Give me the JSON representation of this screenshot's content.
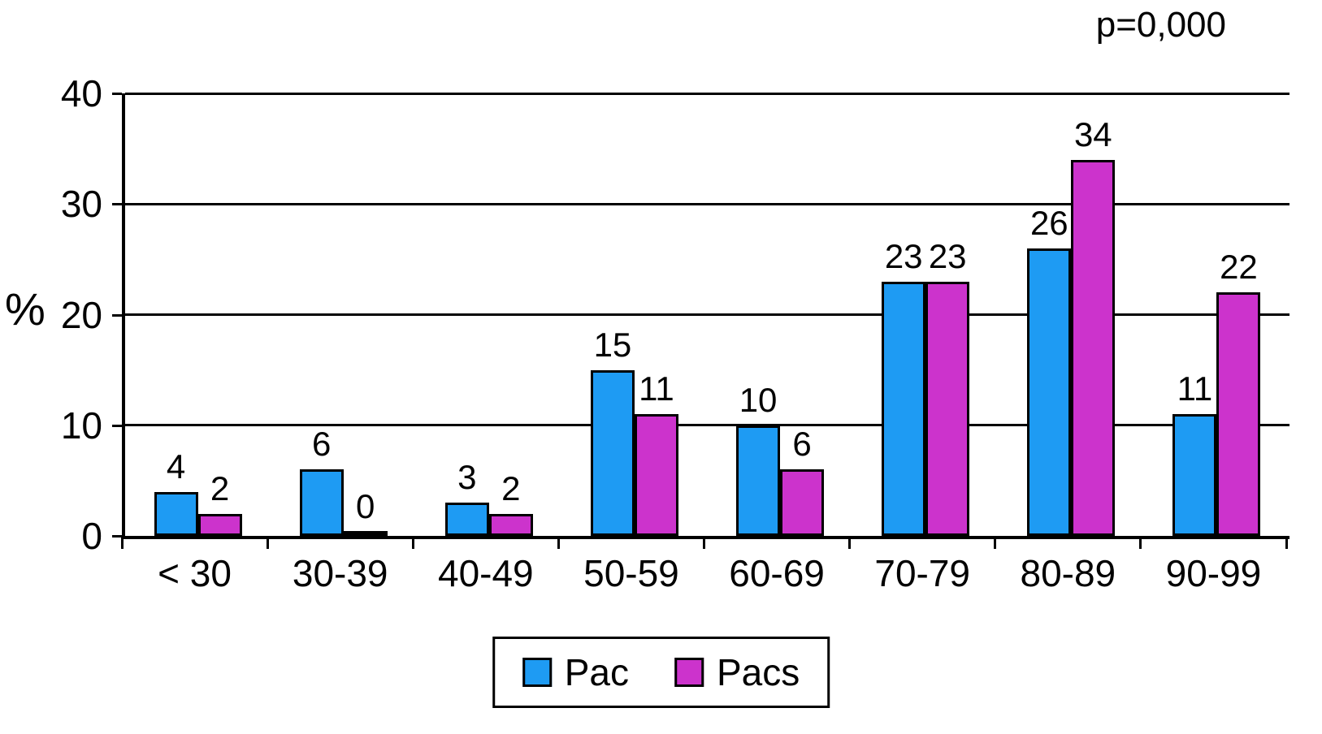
{
  "annotation": {
    "p_value": "p=0,000"
  },
  "y_axis": {
    "label": "%"
  },
  "chart_data": {
    "type": "bar",
    "title": "",
    "categories": [
      "< 30",
      "30-39",
      "40-49",
      "50-59",
      "60-69",
      "70-79",
      "80-89",
      "90-99"
    ],
    "series": [
      {
        "name": "Pac",
        "color": "#1e9bf3",
        "values": [
          4,
          6,
          3,
          15,
          10,
          23,
          26,
          11
        ]
      },
      {
        "name": "Pacs",
        "color": "#cc33cc",
        "values": [
          2,
          0,
          2,
          11,
          6,
          23,
          34,
          22
        ]
      }
    ],
    "xlabel": "",
    "ylabel": "%",
    "ylim": [
      0,
      40
    ],
    "yticks": [
      0,
      10,
      20,
      30,
      40
    ],
    "grid": true,
    "legend_position": "bottom",
    "annotation": "p=0,000",
    "data_labels": true
  }
}
